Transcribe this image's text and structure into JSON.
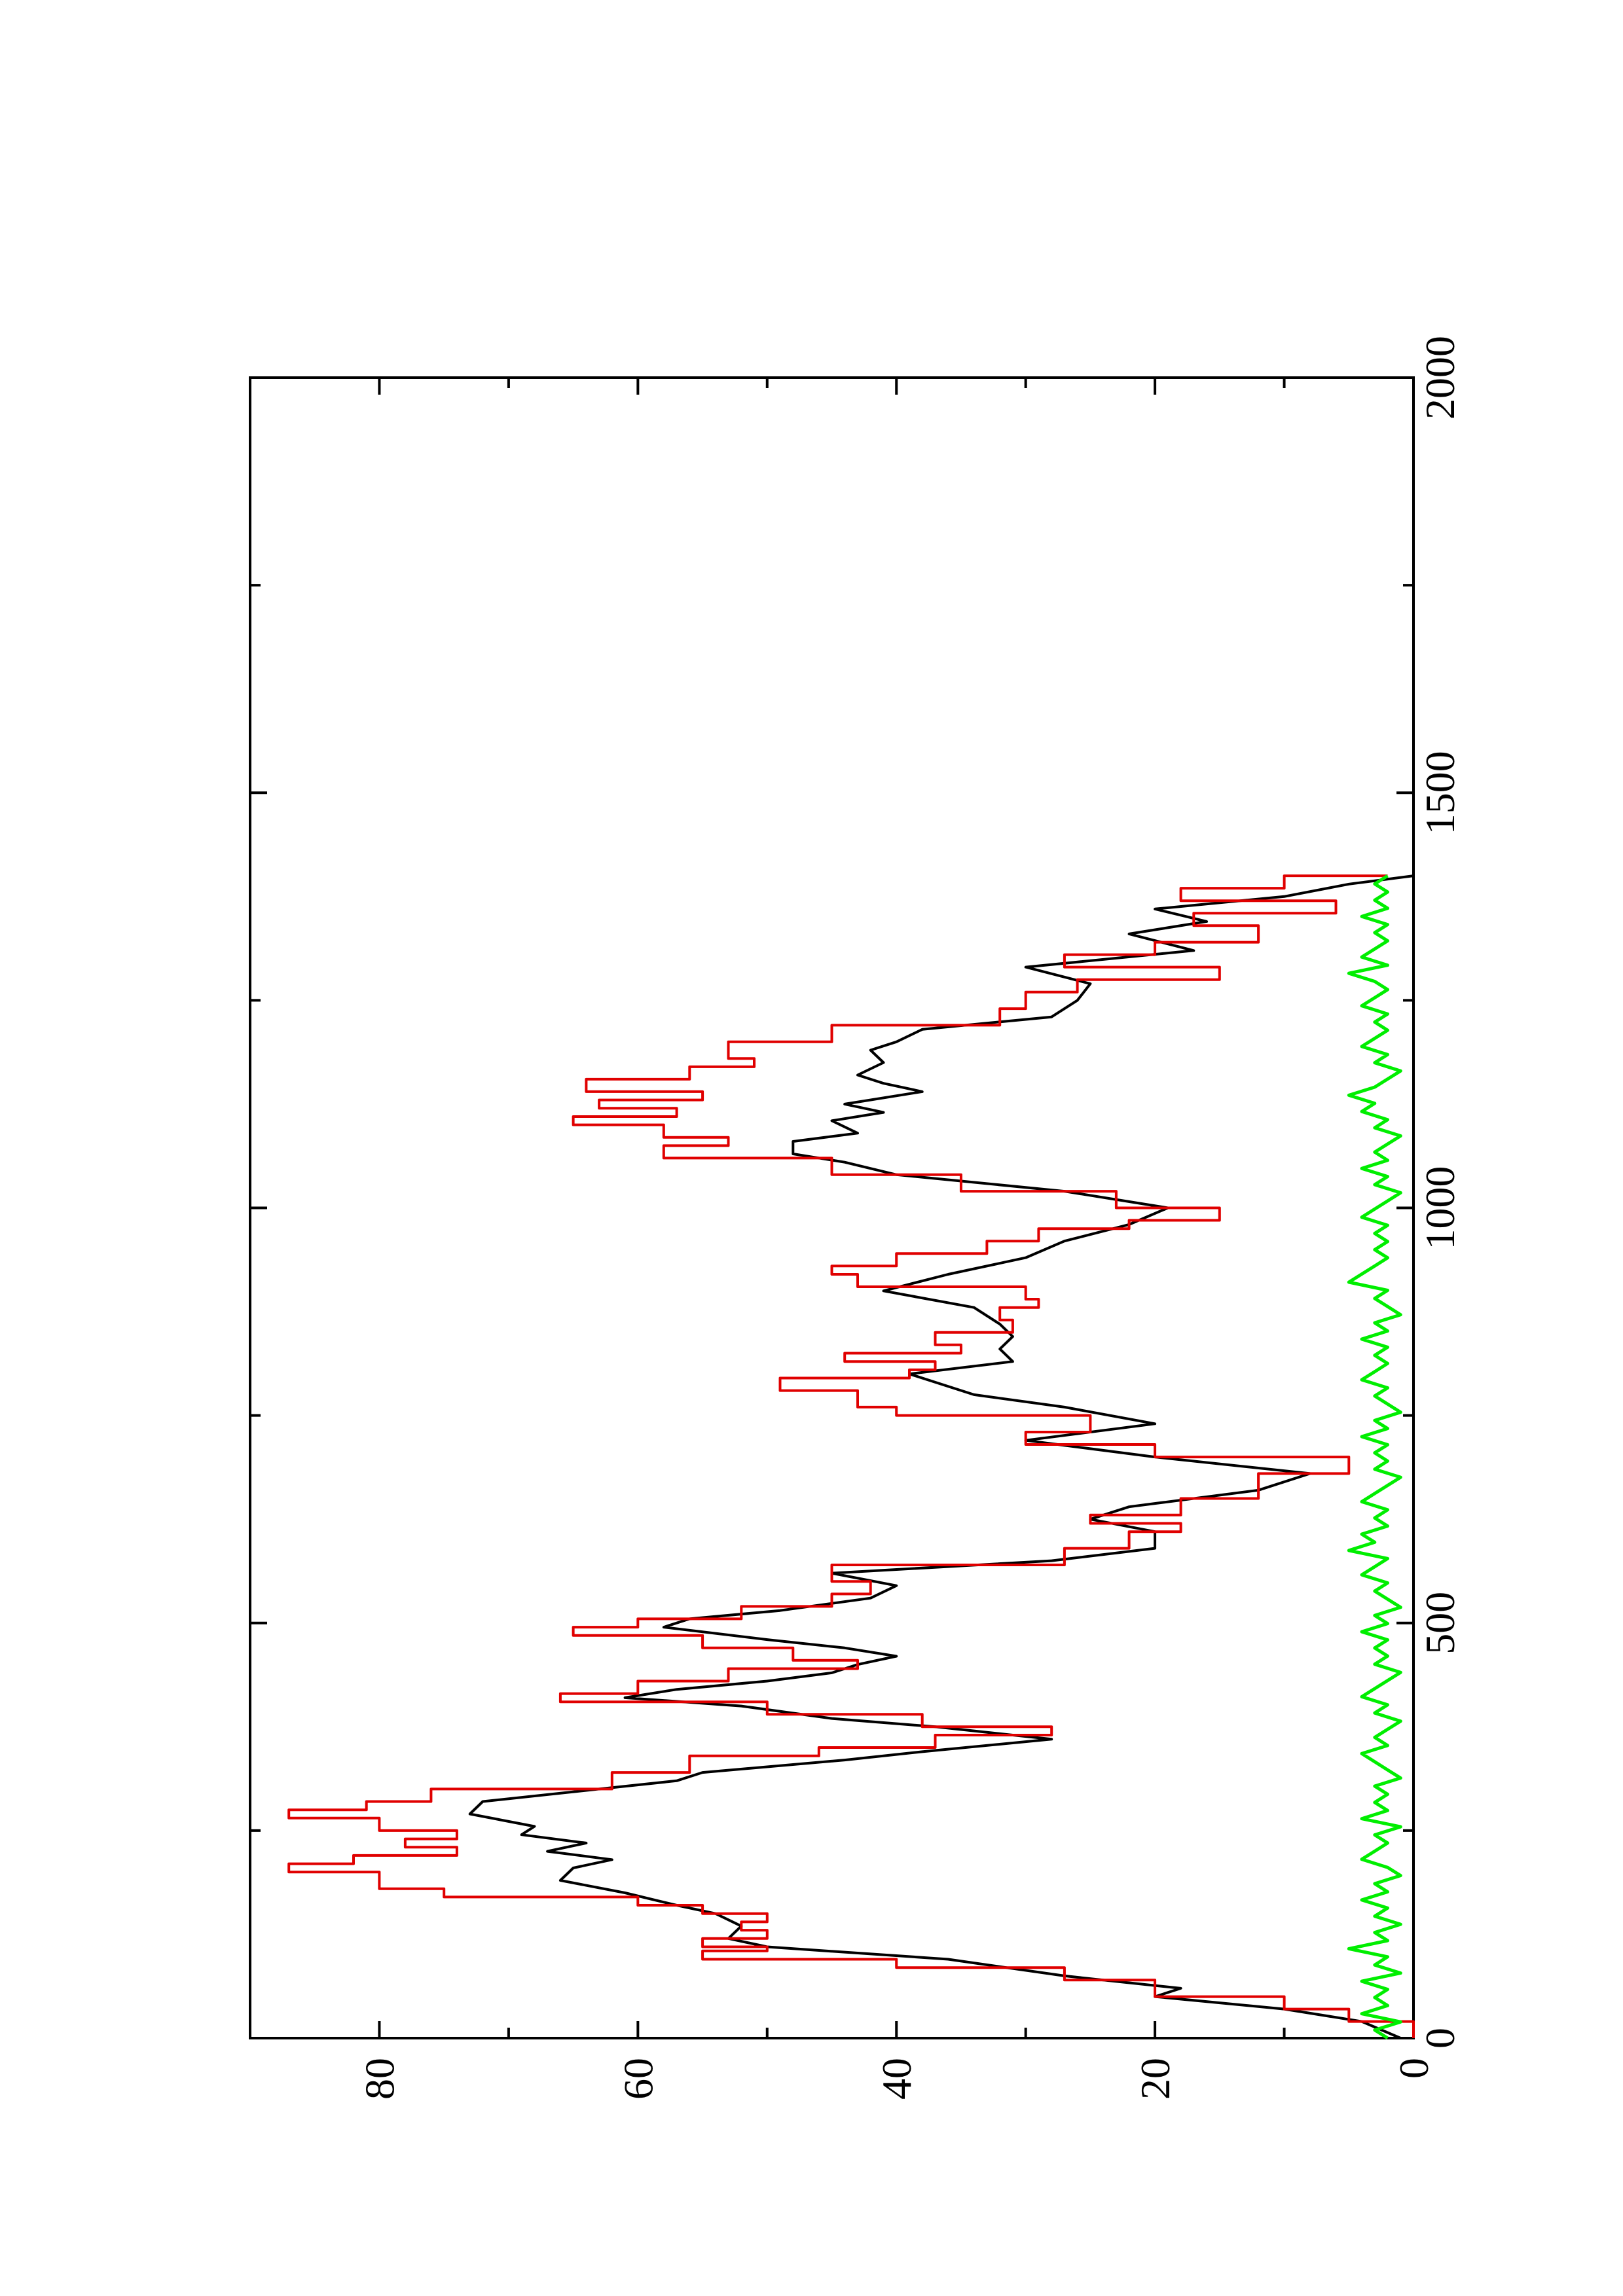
{
  "chart_data": {
    "type": "line",
    "orientation": "rotated-90-ccw",
    "title": "",
    "xlabel": "",
    "ylabel": "",
    "xlim": [
      0,
      2000
    ],
    "ylim": [
      0,
      90
    ],
    "x_ticks": [
      "0",
      "500",
      "1000",
      "1500",
      "2000"
    ],
    "y_ticks": [
      "0",
      "20",
      "40",
      "60",
      "80"
    ],
    "grid": false,
    "legend": "none",
    "series": [
      {
        "color": "#000000",
        "x": [
          0,
          20,
          35,
          50,
          60,
          75,
          95,
          110,
          120,
          135,
          150,
          160,
          175,
          190,
          205,
          215,
          225,
          235,
          245,
          255,
          270,
          285,
          300,
          310,
          320,
          335,
          345,
          360,
          365,
          375,
          385,
          400,
          410,
          420,
          430,
          440,
          450,
          460,
          470,
          480,
          495,
          505,
          515,
          530,
          545,
          560,
          575,
          590,
          610,
          625,
          640,
          660,
          680,
          700,
          720,
          740,
          760,
          775,
          790,
          800,
          815,
          830,
          845,
          860,
          880,
          900,
          920,
          940,
          960,
          980,
          1000,
          1020,
          1040,
          1055,
          1065,
          1080,
          1090,
          1105,
          1115,
          1125,
          1140,
          1150,
          1160,
          1175,
          1190,
          1200,
          1215,
          1230,
          1250,
          1270,
          1290,
          1310,
          1330,
          1345,
          1360,
          1375,
          1390,
          1400
        ],
        "y": [
          1,
          4,
          10,
          20,
          18,
          27,
          36,
          50,
          53,
          52,
          54,
          57,
          61,
          66,
          65,
          62,
          67,
          64,
          69,
          68,
          73,
          72,
          63,
          57,
          55,
          44,
          38,
          28,
          31,
          37,
          45,
          52,
          61,
          57,
          50,
          45,
          43,
          40,
          44,
          50,
          58,
          56,
          49,
          42,
          40,
          45,
          28,
          20,
          20,
          25,
          22,
          12,
          8,
          20,
          30,
          20,
          27,
          34,
          37,
          39,
          31,
          32,
          31,
          32,
          34,
          41,
          36,
          30,
          27,
          22,
          19,
          27,
          40,
          44,
          48,
          48,
          43,
          45,
          41,
          44,
          38,
          41,
          43,
          41,
          42,
          40,
          38,
          28,
          26,
          25,
          30,
          17,
          22,
          16,
          20,
          10,
          5,
          0
        ]
      },
      {
        "color": "#e00000",
        "x": [
          0,
          20,
          35,
          50,
          70,
          85,
          95,
          105,
          110,
          120,
          130,
          140,
          150,
          160,
          170,
          180,
          200,
          210,
          220,
          230,
          240,
          250,
          265,
          275,
          285,
          300,
          320,
          340,
          350,
          365,
          375,
          390,
          405,
          415,
          430,
          445,
          455,
          470,
          485,
          495,
          505,
          520,
          535,
          550,
          570,
          590,
          610,
          620,
          630,
          650,
          680,
          700,
          715,
          730,
          750,
          760,
          780,
          795,
          805,
          815,
          825,
          835,
          850,
          865,
          880,
          890,
          905,
          920,
          930,
          945,
          960,
          975,
          985,
          1000,
          1020,
          1040,
          1060,
          1075,
          1085,
          1100,
          1110,
          1120,
          1130,
          1140,
          1155,
          1170,
          1180,
          1200,
          1220,
          1240,
          1260,
          1275,
          1290,
          1305,
          1320,
          1340,
          1355,
          1370,
          1385,
          1400
        ],
        "y": [
          0,
          5,
          10,
          20,
          27,
          40,
          55,
          50,
          55,
          50,
          52,
          50,
          55,
          60,
          75,
          80,
          87,
          82,
          74,
          78,
          74,
          80,
          87,
          81,
          76,
          62,
          56,
          46,
          37,
          28,
          38,
          50,
          66,
          60,
          53,
          43,
          48,
          55,
          65,
          60,
          52,
          45,
          42,
          45,
          27,
          22,
          18,
          25,
          18,
          12,
          5,
          20,
          30,
          25,
          40,
          43,
          49,
          39,
          37,
          44,
          35,
          37,
          31,
          32,
          29,
          30,
          43,
          45,
          40,
          33,
          29,
          22,
          15,
          23,
          35,
          45,
          58,
          53,
          58,
          65,
          57,
          63,
          55,
          64,
          56,
          51,
          53,
          45,
          32,
          30,
          26,
          15,
          27,
          20,
          12,
          17,
          6,
          18,
          10,
          2
        ]
      },
      {
        "color": "#00ee00",
        "x": [
          0,
          1400
        ],
        "y_range": [
          0,
          5
        ],
        "note_values": [
          2,
          3,
          1,
          4,
          2,
          3,
          2,
          4,
          1,
          3,
          2,
          5,
          2,
          3,
          1,
          3,
          2,
          4,
          2,
          3,
          1,
          2,
          4,
          3,
          2,
          3,
          1,
          4,
          2,
          3,
          2,
          3,
          1,
          2,
          3,
          4,
          2,
          3,
          2,
          1,
          3,
          2,
          4,
          3,
          2,
          1,
          3,
          2,
          3,
          2,
          4,
          2,
          3,
          1,
          2,
          3,
          2,
          4,
          3,
          2,
          5,
          3,
          4,
          2,
          3,
          2,
          4,
          3,
          2,
          1,
          3,
          2,
          3,
          2,
          4,
          2,
          3,
          1,
          2,
          3,
          2,
          4,
          3,
          2,
          3,
          2,
          4,
          2,
          3,
          1,
          2,
          3,
          2,
          5,
          4,
          3,
          2,
          3,
          2,
          3,
          2,
          4,
          3,
          2,
          1,
          3,
          2,
          4,
          2,
          3,
          2,
          1,
          3,
          2,
          4,
          3,
          5,
          3,
          2,
          1,
          3,
          2,
          4,
          3,
          2,
          3,
          2,
          4,
          3,
          2,
          3,
          5,
          2,
          4,
          3,
          2,
          3,
          2,
          4,
          2,
          3,
          2,
          3,
          2
        ]
      }
    ]
  }
}
